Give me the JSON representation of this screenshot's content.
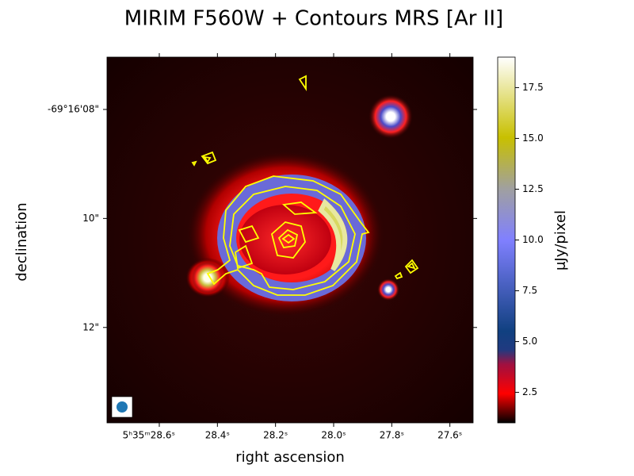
{
  "chart_data": {
    "type": "image",
    "title": "MIRIM F560W + Contours MRS [Ar II]",
    "x_label": "right ascension",
    "y_label": "declination",
    "colorbar_label": "μJy/pixel",
    "xlim": [
      28.78,
      27.52
    ],
    "xticks": [
      {
        "value": 28.6,
        "label": "5ʰ35ᵐ28.6ˢ"
      },
      {
        "value": 28.4,
        "label": "28.4ˢ"
      },
      {
        "value": 28.2,
        "label": "28.2ˢ"
      },
      {
        "value": 28.0,
        "label": "28.0ˢ"
      },
      {
        "value": 27.8,
        "label": "27.8ˢ"
      },
      {
        "value": 27.6,
        "label": "27.6ˢ"
      }
    ],
    "ylim": [
      7.04,
      13.75
    ],
    "yticks": [
      {
        "value": 8,
        "label": "-69°16'08\""
      },
      {
        "value": 10,
        "label": "10\""
      },
      {
        "value": 12,
        "label": "12\""
      }
    ],
    "clim": [
      1.0,
      19.0
    ],
    "cticks": [
      2.5,
      5.0,
      7.5,
      10.0,
      12.5,
      15.0,
      17.5
    ],
    "contour_color": "#ffff00"
  }
}
